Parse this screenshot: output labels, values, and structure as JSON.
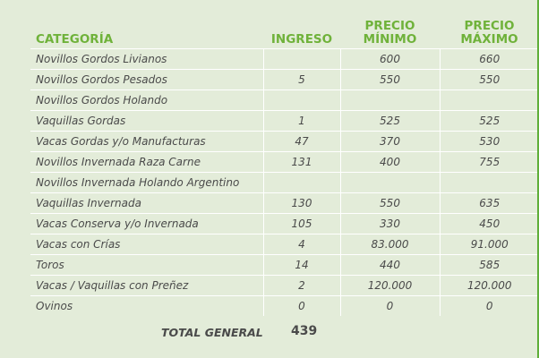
{
  "table": {
    "headers": {
      "category": "CATEGORÍA",
      "ingreso": "INGRESO",
      "precio_min": [
        "PRECIO",
        "MÍNIMO"
      ],
      "precio_max": [
        "PRECIO",
        "MÁXIMO"
      ]
    },
    "rows": [
      {
        "category": "Novillos Gordos Livianos",
        "ingreso": "",
        "min": "600",
        "max": "660"
      },
      {
        "category": "Novillos Gordos Pesados",
        "ingreso": "5",
        "min": "550",
        "max": "550"
      },
      {
        "category": "Novillos Gordos Holando",
        "ingreso": "",
        "min": "",
        "max": ""
      },
      {
        "category": "Vaquillas Gordas",
        "ingreso": "1",
        "min": "525",
        "max": "525"
      },
      {
        "category": "Vacas Gordas y/o Manufacturas",
        "ingreso": "47",
        "min": "370",
        "max": "530"
      },
      {
        "category": "Novillos Invernada Raza Carne",
        "ingreso": "131",
        "min": "400",
        "max": "755"
      },
      {
        "category": "Novillos Invernada Holando Argentino",
        "ingreso": "",
        "min": "",
        "max": ""
      },
      {
        "category": "Vaquillas Invernada",
        "ingreso": "130",
        "min": "550",
        "max": "635"
      },
      {
        "category": "Vacas Conserva y/o Invernada",
        "ingreso": "105",
        "min": "330",
        "max": "450"
      },
      {
        "category": "Vacas con Crías",
        "ingreso": "4",
        "min": "83.000",
        "max": "91.000"
      },
      {
        "category": "Toros",
        "ingreso": "14",
        "min": "440",
        "max": "585"
      },
      {
        "category": "Vacas / Vaquillas con Preñez",
        "ingreso": "2",
        "min": "120.000",
        "max": "120.000"
      },
      {
        "category": "Ovinos",
        "ingreso": "0",
        "min": "0",
        "max": "0"
      }
    ]
  },
  "total": {
    "label": "TOTAL GENERAL",
    "value": "439"
  },
  "colors": {
    "header_green": "#6fb23a",
    "background": "#e3ecd9",
    "text": "#4a4a4a",
    "grid": "#ffffff"
  }
}
